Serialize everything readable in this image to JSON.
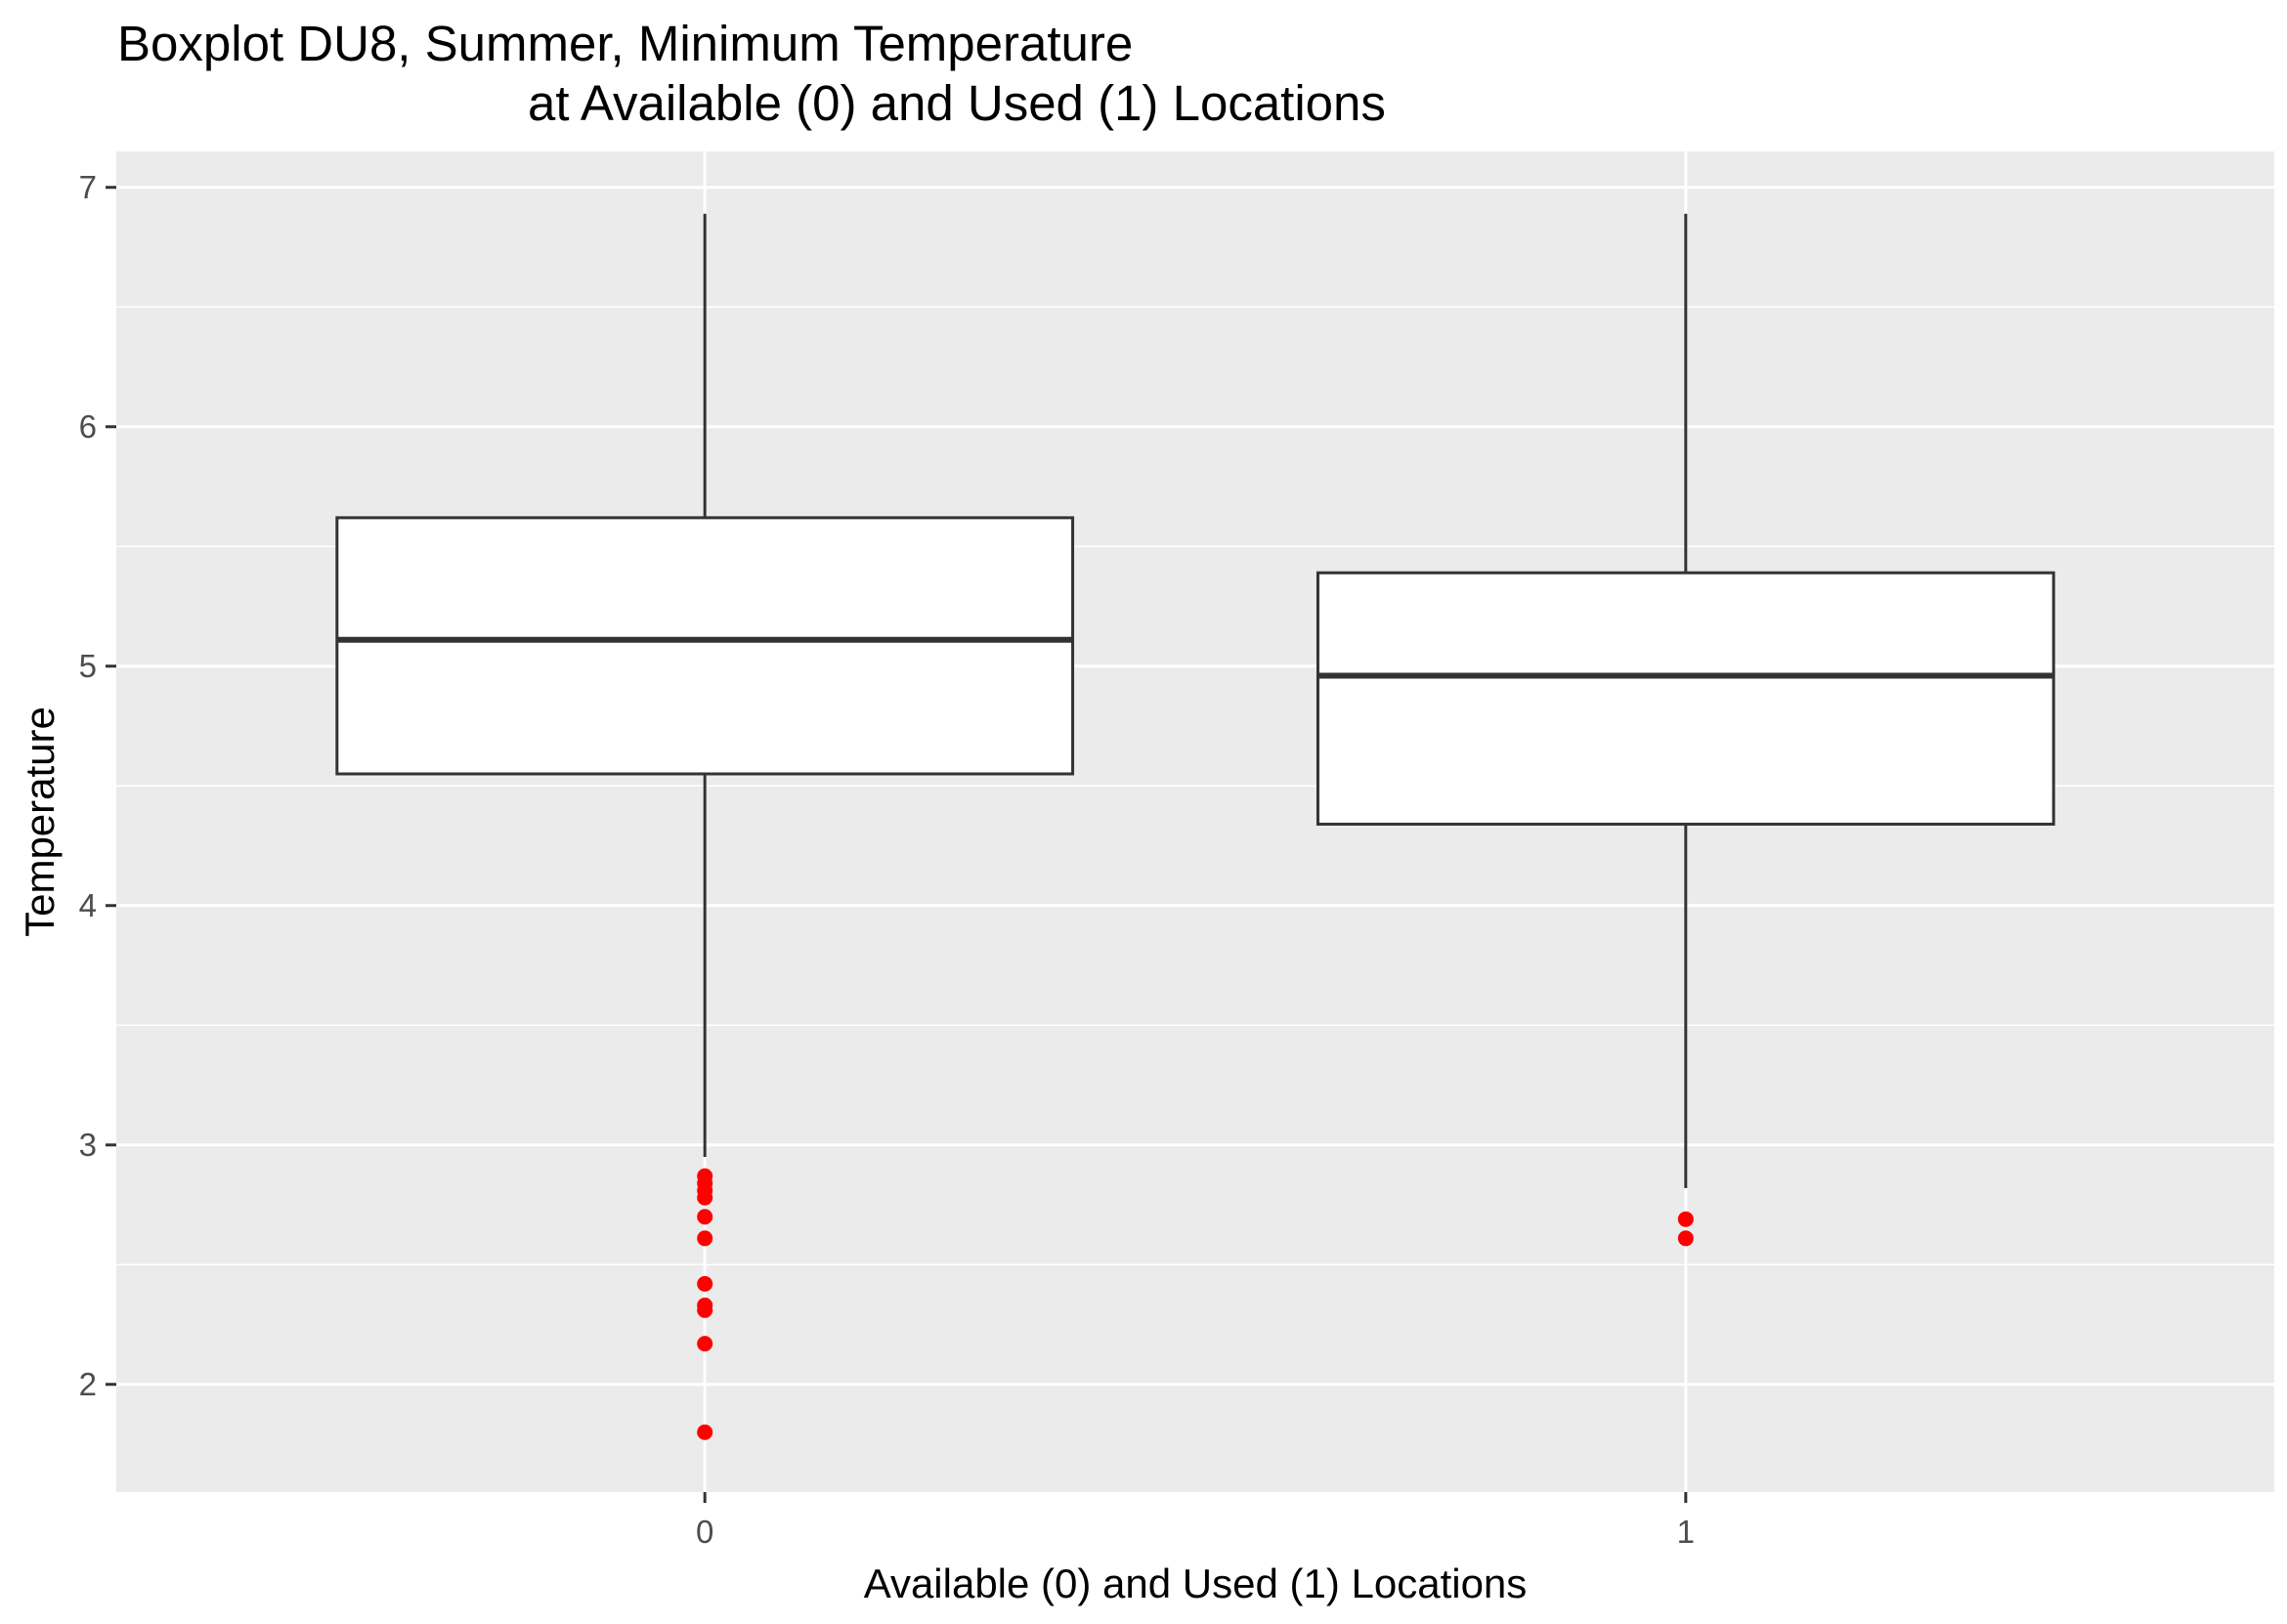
{
  "chart_data": {
    "type": "boxplot",
    "title": [
      "Boxplot DU8, Summer, Minimum Temperature",
      "at Available (0) and Used (1) Locations"
    ],
    "xlabel": "Available (0) and Used (1) Locations",
    "ylabel": "Temperature",
    "categories": [
      "0",
      "1"
    ],
    "ylim": [
      1.55,
      7.15
    ],
    "yticks": [
      2,
      3,
      4,
      5,
      6,
      7
    ],
    "grid": true,
    "legend": "none",
    "colors": {
      "panel": "#ebebeb",
      "grid": "#ffffff",
      "box_fill": "#ffffff",
      "box_line": "#333333",
      "outlier": "#ff0000",
      "tick": "#333333"
    },
    "boxes": [
      {
        "category": "0",
        "whisker_low": 2.95,
        "q1": 4.55,
        "median": 5.11,
        "q3": 5.62,
        "whisker_high": 6.89,
        "outliers": [
          2.87,
          2.84,
          2.81,
          2.78,
          2.7,
          2.61,
          2.42,
          2.33,
          2.31,
          2.17,
          1.8
        ]
      },
      {
        "category": "1",
        "whisker_low": 2.82,
        "q1": 4.34,
        "median": 4.96,
        "q3": 5.39,
        "whisker_high": 6.89,
        "outliers": [
          2.69,
          2.61
        ]
      }
    ]
  }
}
